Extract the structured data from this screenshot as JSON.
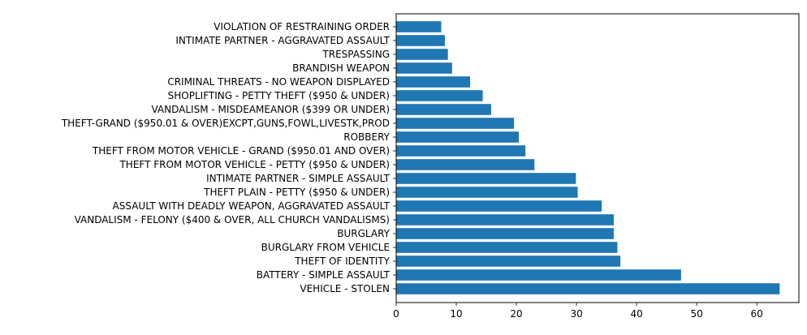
{
  "chart_data": {
    "type": "bar",
    "orientation": "horizontal",
    "categories": [
      "VEHICLE - STOLEN",
      "BATTERY - SIMPLE ASSAULT",
      "THEFT OF IDENTITY",
      "BURGLARY FROM VEHICLE",
      "BURGLARY",
      "VANDALISM - FELONY ($400 & OVER, ALL CHURCH VANDALISMS)",
      "ASSAULT WITH DEADLY WEAPON, AGGRAVATED ASSAULT",
      "THEFT PLAIN - PETTY ($950 & UNDER)",
      "INTIMATE PARTNER - SIMPLE ASSAULT",
      "THEFT FROM MOTOR VEHICLE - PETTY ($950 & UNDER)",
      "THEFT FROM MOTOR VEHICLE - GRAND ($950.01 AND OVER)",
      "ROBBERY",
      "THEFT-GRAND ($950.01 & OVER)EXCPT,GUNS,FOWL,LIVESTK,PROD",
      "VANDALISM - MISDEAMEANOR ($399 OR UNDER)",
      "SHOPLIFTING - PETTY THEFT ($950 & UNDER)",
      "CRIMINAL THREATS - NO WEAPON DISPLAYED",
      "BRANDISH WEAPON",
      "TRESPASSING",
      "INTIMATE PARTNER - AGGRAVATED ASSAULT",
      "VIOLATION OF RESTRAINING ORDER"
    ],
    "values": [
      63.8,
      47.4,
      37.3,
      36.8,
      36.2,
      36.2,
      34.2,
      30.2,
      29.9,
      23.0,
      21.5,
      20.4,
      19.6,
      15.8,
      14.4,
      12.3,
      9.3,
      8.6,
      8.1,
      7.5
    ],
    "xticks": [
      0,
      10,
      20,
      30,
      40,
      50,
      60
    ],
    "xlim": [
      0,
      67
    ],
    "title": "",
    "xlabel": "",
    "ylabel": "",
    "grid": false,
    "bar_color": "#1f77b4"
  }
}
